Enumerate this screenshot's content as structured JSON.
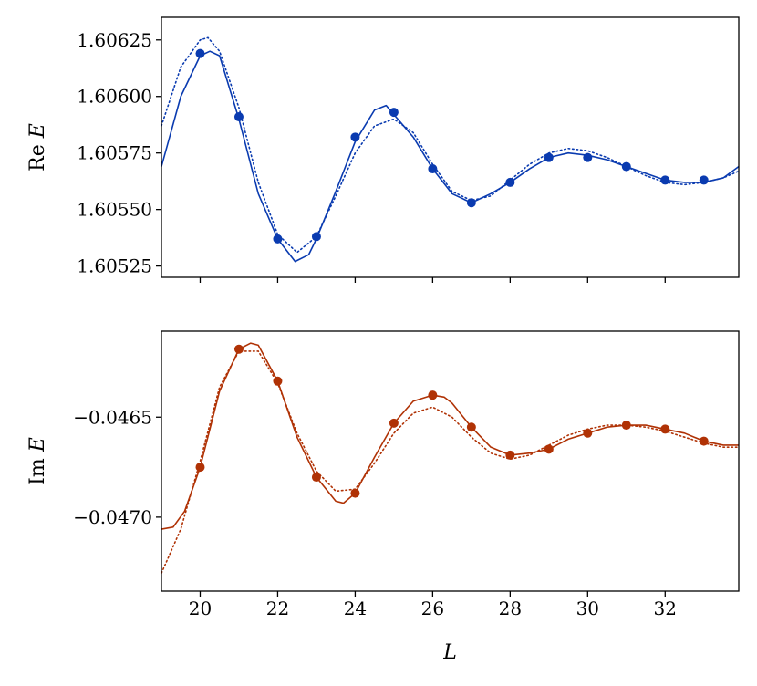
{
  "chart_data": [
    {
      "type": "line",
      "panel": "top",
      "ylabel": "Re E",
      "ylim": [
        1.6052,
        1.60635
      ],
      "xlim": [
        19.0,
        33.9
      ],
      "yticks": [
        {
          "value": 1.60525,
          "label": "1.60525"
        },
        {
          "value": 1.6055,
          "label": "1.60550"
        },
        {
          "value": 1.60575,
          "label": "1.60575"
        },
        {
          "value": 1.606,
          "label": "1.60600"
        },
        {
          "value": 1.60625,
          "label": "1.60625"
        }
      ],
      "color": "#0a3bb0",
      "points": {
        "x": [
          20,
          21,
          22,
          23,
          24,
          25,
          26,
          27,
          28,
          29,
          30,
          31,
          32,
          33
        ],
        "y": [
          1.60619,
          1.60591,
          1.60537,
          1.60538,
          1.60582,
          1.60593,
          1.60568,
          1.60553,
          1.60562,
          1.60573,
          1.60573,
          1.60569,
          1.60563,
          1.60563
        ]
      },
      "solid": {
        "x": [
          19.0,
          19.5,
          20.0,
          20.25,
          20.5,
          21.0,
          21.5,
          22.0,
          22.45,
          22.8,
          23.0,
          23.5,
          24.0,
          24.5,
          24.8,
          25.0,
          25.5,
          26.0,
          26.5,
          27.0,
          27.5,
          28.0,
          28.5,
          29.0,
          29.5,
          30.0,
          30.5,
          31.0,
          31.5,
          32.0,
          32.5,
          33.0,
          33.5,
          33.9
        ],
        "y": [
          1.60569,
          1.606,
          1.60618,
          1.6062,
          1.60618,
          1.6059,
          1.60557,
          1.60537,
          1.60527,
          1.6053,
          1.60537,
          1.60558,
          1.6058,
          1.60594,
          1.60596,
          1.60592,
          1.60582,
          1.60568,
          1.60557,
          1.60553,
          1.60557,
          1.60562,
          1.60568,
          1.60573,
          1.60575,
          1.60574,
          1.60572,
          1.60569,
          1.60566,
          1.60563,
          1.60562,
          1.60562,
          1.60564,
          1.60569
        ]
      },
      "dotted": {
        "x": [
          19.0,
          19.5,
          20.0,
          20.2,
          20.5,
          21.0,
          21.5,
          22.0,
          22.5,
          23.0,
          23.5,
          24.0,
          24.5,
          25.0,
          25.5,
          26.0,
          26.5,
          27.0,
          27.5,
          28.0,
          28.5,
          29.0,
          29.5,
          30.0,
          30.5,
          31.0,
          31.5,
          32.0,
          32.5,
          33.0,
          33.5,
          33.9
        ],
        "y": [
          1.60587,
          1.60613,
          1.60625,
          1.60626,
          1.6062,
          1.60595,
          1.60562,
          1.60539,
          1.60531,
          1.60538,
          1.60556,
          1.60575,
          1.60587,
          1.6059,
          1.60584,
          1.6057,
          1.60558,
          1.60554,
          1.60556,
          1.60563,
          1.6057,
          1.60575,
          1.60577,
          1.60576,
          1.60573,
          1.60569,
          1.60565,
          1.60562,
          1.60561,
          1.60562,
          1.60564,
          1.60567
        ]
      }
    },
    {
      "type": "line",
      "panel": "bottom",
      "ylabel": "Im E",
      "xlabel": "L",
      "ylim": [
        -0.04737,
        -0.04607
      ],
      "xlim": [
        19.0,
        33.9
      ],
      "xticks": [
        {
          "value": 20,
          "label": "20"
        },
        {
          "value": 22,
          "label": "22"
        },
        {
          "value": 24,
          "label": "24"
        },
        {
          "value": 26,
          "label": "26"
        },
        {
          "value": 28,
          "label": "28"
        },
        {
          "value": 30,
          "label": "30"
        },
        {
          "value": 32,
          "label": "32"
        }
      ],
      "yticks": [
        {
          "value": -0.047,
          "label": "−0.0470"
        },
        {
          "value": -0.0465,
          "label": "−0.0465"
        }
      ],
      "color": "#b03205",
      "points": {
        "x": [
          20,
          21,
          22,
          23,
          24,
          25,
          26,
          27,
          28,
          29,
          30,
          31,
          32,
          33
        ],
        "y": [
          -0.04675,
          -0.04616,
          -0.04632,
          -0.0468,
          -0.04688,
          -0.04653,
          -0.04639,
          -0.04655,
          -0.04669,
          -0.04666,
          -0.04658,
          -0.04654,
          -0.04656,
          -0.04662
        ]
      },
      "solid": {
        "x": [
          19.0,
          19.3,
          19.6,
          20.0,
          20.5,
          21.0,
          21.3,
          21.5,
          22.0,
          22.5,
          23.0,
          23.5,
          23.7,
          24.0,
          24.5,
          25.0,
          25.5,
          26.0,
          26.3,
          26.5,
          27.0,
          27.5,
          28.0,
          28.5,
          29.0,
          29.5,
          30.0,
          30.5,
          31.0,
          31.5,
          32.0,
          32.5,
          33.0,
          33.5,
          33.9
        ],
        "y": [
          -0.04706,
          -0.04705,
          -0.04697,
          -0.04675,
          -0.04637,
          -0.04616,
          -0.04613,
          -0.04614,
          -0.04632,
          -0.0466,
          -0.0468,
          -0.04692,
          -0.04693,
          -0.04688,
          -0.0467,
          -0.04653,
          -0.04642,
          -0.04639,
          -0.0464,
          -0.04643,
          -0.04655,
          -0.04665,
          -0.04669,
          -0.04668,
          -0.04666,
          -0.04661,
          -0.04658,
          -0.04655,
          -0.04654,
          -0.04654,
          -0.04656,
          -0.04658,
          -0.04662,
          -0.04664,
          -0.04664
        ]
      },
      "dotted": {
        "x": [
          19.0,
          19.5,
          20.0,
          20.5,
          21.0,
          21.5,
          22.0,
          22.5,
          23.0,
          23.5,
          24.0,
          24.5,
          25.0,
          25.5,
          26.0,
          26.5,
          27.0,
          27.5,
          28.0,
          28.5,
          29.0,
          29.5,
          30.0,
          30.5,
          31.0,
          31.5,
          32.0,
          32.5,
          33.0,
          33.5,
          33.9
        ],
        "y": [
          -0.04728,
          -0.04706,
          -0.04672,
          -0.04635,
          -0.04617,
          -0.04617,
          -0.04633,
          -0.04658,
          -0.04677,
          -0.04687,
          -0.04686,
          -0.04673,
          -0.04658,
          -0.04648,
          -0.04645,
          -0.0465,
          -0.0466,
          -0.04668,
          -0.04671,
          -0.04669,
          -0.04664,
          -0.04659,
          -0.04656,
          -0.04654,
          -0.04654,
          -0.04655,
          -0.04657,
          -0.0466,
          -0.04663,
          -0.04665,
          -0.04665
        ]
      }
    }
  ]
}
